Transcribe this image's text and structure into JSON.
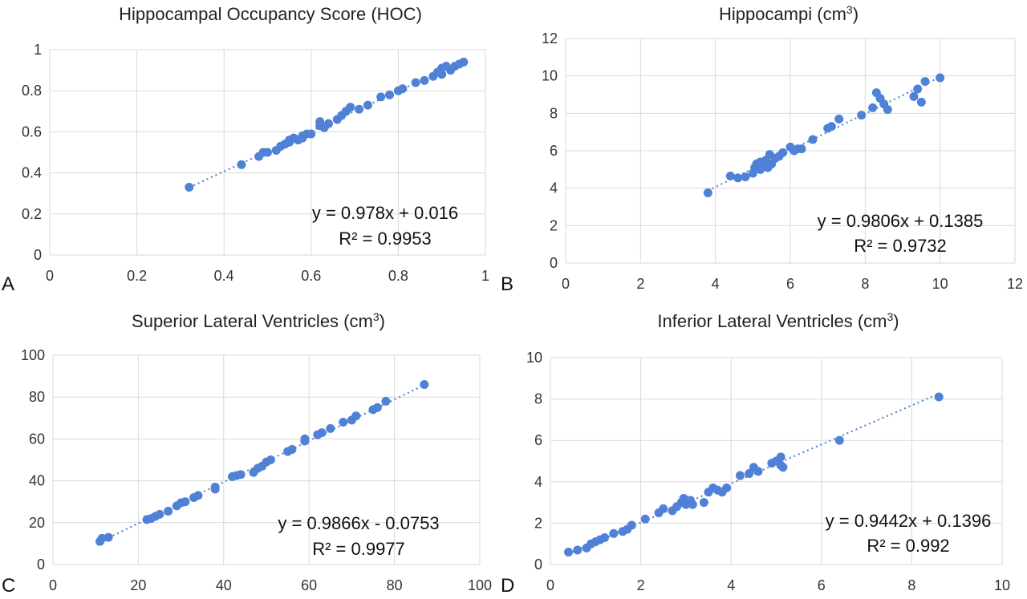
{
  "chart_data": [
    {
      "type": "scatter",
      "panel": "A",
      "title": "Hippocampal Occupancy Score (HOC)",
      "title_sup": "",
      "title_suffix": "",
      "xlim": [
        0,
        1
      ],
      "ylim": [
        0,
        1
      ],
      "xticks": [
        0,
        0.2,
        0.4,
        0.6,
        0.8,
        1
      ],
      "yticks": [
        0,
        0.2,
        0.4,
        0.6,
        0.8,
        1
      ],
      "tick_labels_x": [
        "0",
        "0.2",
        "0.4",
        "0.6",
        "0.8",
        "1"
      ],
      "tick_labels_y": [
        "0",
        "0.2",
        "0.4",
        "0.6",
        "0.8",
        "1"
      ],
      "grid": true,
      "trendline": {
        "slope": 0.978,
        "intercept": 0.016
      },
      "equation": "y = 0.978x + 0.016",
      "r2": "R² = 0.9953",
      "points": [
        [
          0.32,
          0.33
        ],
        [
          0.44,
          0.44
        ],
        [
          0.48,
          0.48
        ],
        [
          0.49,
          0.5
        ],
        [
          0.5,
          0.5
        ],
        [
          0.52,
          0.51
        ],
        [
          0.53,
          0.53
        ],
        [
          0.54,
          0.54
        ],
        [
          0.55,
          0.55
        ],
        [
          0.55,
          0.56
        ],
        [
          0.56,
          0.57
        ],
        [
          0.57,
          0.56
        ],
        [
          0.58,
          0.57
        ],
        [
          0.58,
          0.58
        ],
        [
          0.59,
          0.59
        ],
        [
          0.6,
          0.59
        ],
        [
          0.62,
          0.63
        ],
        [
          0.62,
          0.65
        ],
        [
          0.63,
          0.62
        ],
        [
          0.64,
          0.64
        ],
        [
          0.66,
          0.66
        ],
        [
          0.67,
          0.68
        ],
        [
          0.68,
          0.7
        ],
        [
          0.69,
          0.72
        ],
        [
          0.71,
          0.71
        ],
        [
          0.73,
          0.73
        ],
        [
          0.76,
          0.77
        ],
        [
          0.78,
          0.78
        ],
        [
          0.8,
          0.8
        ],
        [
          0.81,
          0.81
        ],
        [
          0.84,
          0.84
        ],
        [
          0.86,
          0.85
        ],
        [
          0.88,
          0.87
        ],
        [
          0.89,
          0.89
        ],
        [
          0.9,
          0.88
        ],
        [
          0.9,
          0.91
        ],
        [
          0.91,
          0.92
        ],
        [
          0.92,
          0.9
        ],
        [
          0.93,
          0.92
        ],
        [
          0.94,
          0.93
        ],
        [
          0.95,
          0.94
        ]
      ]
    },
    {
      "type": "scatter",
      "panel": "B",
      "title": "Hippocampi (cm",
      "title_sup": "3",
      "title_suffix": ")",
      "xlim": [
        0,
        12
      ],
      "ylim": [
        0,
        12
      ],
      "xticks": [
        0,
        2,
        4,
        6,
        8,
        10,
        12
      ],
      "yticks": [
        0,
        2,
        4,
        6,
        8,
        10,
        12
      ],
      "tick_labels_x": [
        "0",
        "2",
        "4",
        "6",
        "8",
        "10",
        "12"
      ],
      "tick_labels_y": [
        "0",
        "2",
        "4",
        "6",
        "8",
        "10",
        "12"
      ],
      "grid": true,
      "trendline": {
        "slope": 0.9806,
        "intercept": 0.1385
      },
      "equation": "y = 0.9806x + 0.1385",
      "r2": "R² = 0.9732",
      "points": [
        [
          3.8,
          3.75
        ],
        [
          4.4,
          4.65
        ],
        [
          4.6,
          4.55
        ],
        [
          4.8,
          4.6
        ],
        [
          5.0,
          4.8
        ],
        [
          5.05,
          5.1
        ],
        [
          5.1,
          5.3
        ],
        [
          5.2,
          5.0
        ],
        [
          5.2,
          5.4
        ],
        [
          5.3,
          5.2
        ],
        [
          5.35,
          5.5
        ],
        [
          5.4,
          5.1
        ],
        [
          5.45,
          5.8
        ],
        [
          5.5,
          5.3
        ],
        [
          5.6,
          5.6
        ],
        [
          5.7,
          5.7
        ],
        [
          5.8,
          5.9
        ],
        [
          6.0,
          6.2
        ],
        [
          6.1,
          6.0
        ],
        [
          6.2,
          6.1
        ],
        [
          6.3,
          6.1
        ],
        [
          6.6,
          6.6
        ],
        [
          7.0,
          7.2
        ],
        [
          7.1,
          7.3
        ],
        [
          7.3,
          7.7
        ],
        [
          7.9,
          7.9
        ],
        [
          8.2,
          8.3
        ],
        [
          8.3,
          9.1
        ],
        [
          8.4,
          8.8
        ],
        [
          8.5,
          8.5
        ],
        [
          8.6,
          8.2
        ],
        [
          9.3,
          8.9
        ],
        [
          9.4,
          9.3
        ],
        [
          9.5,
          8.6
        ],
        [
          9.6,
          9.7
        ],
        [
          10.0,
          9.9
        ]
      ]
    },
    {
      "type": "scatter",
      "panel": "C",
      "title": "Superior Lateral Ventricles (cm",
      "title_sup": "3",
      "title_suffix": ")",
      "xlim": [
        0,
        100
      ],
      "ylim": [
        0,
        100
      ],
      "xticks": [
        0,
        20,
        40,
        60,
        80,
        100
      ],
      "yticks": [
        0,
        20,
        40,
        60,
        80,
        100
      ],
      "tick_labels_x": [
        "0",
        "20",
        "40",
        "60",
        "80",
        "100"
      ],
      "tick_labels_y": [
        "0",
        "20",
        "40",
        "60",
        "80",
        "100"
      ],
      "grid": true,
      "trendline": {
        "slope": 0.9866,
        "intercept": -0.0753
      },
      "equation": "y = 0.9866x - 0.0753",
      "r2": "R² = 0.9977",
      "points": [
        [
          11,
          11
        ],
        [
          11.5,
          12.5
        ],
        [
          13,
          13
        ],
        [
          22,
          21.5
        ],
        [
          23,
          22
        ],
        [
          24,
          23
        ],
        [
          25,
          24
        ],
        [
          27,
          25.5
        ],
        [
          29,
          28
        ],
        [
          30,
          29.5
        ],
        [
          31,
          30
        ],
        [
          33,
          32
        ],
        [
          34,
          33
        ],
        [
          38,
          36
        ],
        [
          38,
          37
        ],
        [
          42,
          42
        ],
        [
          43,
          42.5
        ],
        [
          44,
          43
        ],
        [
          47,
          44
        ],
        [
          48,
          46
        ],
        [
          49,
          47
        ],
        [
          50,
          49
        ],
        [
          51,
          50
        ],
        [
          55,
          54
        ],
        [
          56,
          55
        ],
        [
          59,
          59
        ],
        [
          59,
          60
        ],
        [
          62,
          62
        ],
        [
          63,
          63
        ],
        [
          65,
          65
        ],
        [
          68,
          68
        ],
        [
          70,
          69
        ],
        [
          71,
          71
        ],
        [
          75,
          74
        ],
        [
          76,
          75
        ],
        [
          78,
          78
        ],
        [
          87,
          86
        ]
      ]
    },
    {
      "type": "scatter",
      "panel": "D",
      "title": "Inferior Lateral Ventricles (cm",
      "title_sup": "3",
      "title_suffix": ")",
      "xlim": [
        0,
        10
      ],
      "ylim": [
        0,
        10
      ],
      "xticks": [
        0,
        2,
        4,
        6,
        8,
        10
      ],
      "yticks": [
        0,
        2,
        4,
        6,
        8,
        10
      ],
      "tick_labels_x": [
        "0",
        "2",
        "4",
        "6",
        "8",
        "10"
      ],
      "tick_labels_y": [
        "0",
        "2",
        "4",
        "6",
        "8",
        "10"
      ],
      "grid": true,
      "trendline": {
        "slope": 0.9442,
        "intercept": 0.1396
      },
      "equation": "y = 0.9442x + 0.1396",
      "r2": "R² = 0.992",
      "points": [
        [
          0.4,
          0.6
        ],
        [
          0.6,
          0.7
        ],
        [
          0.8,
          0.8
        ],
        [
          0.9,
          1.0
        ],
        [
          1.0,
          1.1
        ],
        [
          1.1,
          1.2
        ],
        [
          1.2,
          1.3
        ],
        [
          1.4,
          1.5
        ],
        [
          1.6,
          1.6
        ],
        [
          1.7,
          1.7
        ],
        [
          1.8,
          1.9
        ],
        [
          2.1,
          2.2
        ],
        [
          2.4,
          2.5
        ],
        [
          2.5,
          2.7
        ],
        [
          2.7,
          2.6
        ],
        [
          2.8,
          2.8
        ],
        [
          2.9,
          3.0
        ],
        [
          2.95,
          3.2
        ],
        [
          3.0,
          2.9
        ],
        [
          3.1,
          3.1
        ],
        [
          3.15,
          2.9
        ],
        [
          3.4,
          3.0
        ],
        [
          3.5,
          3.5
        ],
        [
          3.6,
          3.7
        ],
        [
          3.7,
          3.6
        ],
        [
          3.8,
          3.5
        ],
        [
          3.9,
          3.7
        ],
        [
          4.2,
          4.3
        ],
        [
          4.4,
          4.4
        ],
        [
          4.5,
          4.7
        ],
        [
          4.6,
          4.5
        ],
        [
          4.9,
          4.9
        ],
        [
          5.0,
          5.0
        ],
        [
          5.1,
          4.8
        ],
        [
          5.1,
          5.2
        ],
        [
          5.15,
          4.7
        ],
        [
          6.4,
          6.0
        ],
        [
          8.6,
          8.1
        ]
      ]
    }
  ]
}
